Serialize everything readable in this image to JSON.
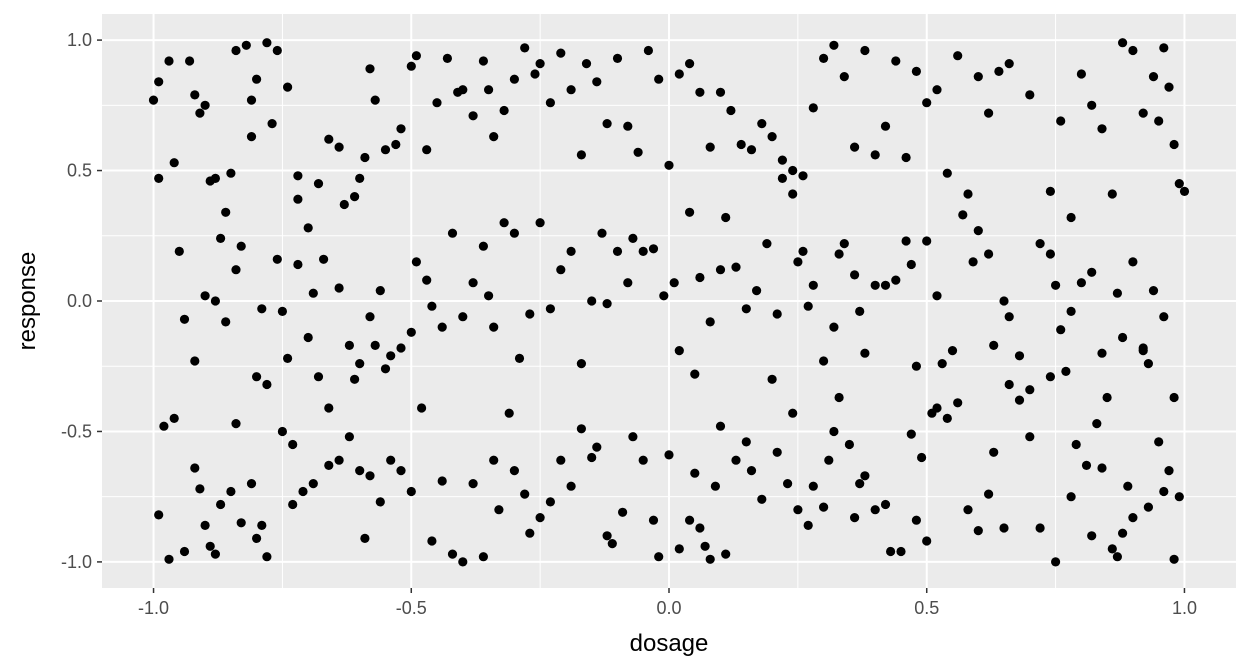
{
  "chart_data": {
    "type": "scatter",
    "xlabel": "dosage",
    "ylabel": "response",
    "xlim": [
      -1.1,
      1.1
    ],
    "ylim": [
      -1.1,
      1.1
    ],
    "x_ticks": [
      -1.0,
      -0.5,
      0.0,
      0.5,
      1.0
    ],
    "x_tick_labels": [
      "-1.0",
      "-0.5",
      "0.0",
      "0.5",
      "1.0"
    ],
    "y_ticks": [
      -1.0,
      -0.5,
      0.0,
      0.5,
      1.0
    ],
    "y_tick_labels": [
      "-1.0",
      "-0.5",
      "0.0",
      "0.5",
      "1.0"
    ],
    "grid": true,
    "panel_color": "#ebebeb",
    "grid_color": "#ffffff",
    "point_color": "#000000",
    "points": [
      [
        -1.0,
        0.77
      ],
      [
        -0.99,
        0.84
      ],
      [
        -0.99,
        0.47
      ],
      [
        -0.97,
        0.92
      ],
      [
        -0.96,
        0.53
      ],
      [
        -0.95,
        0.19
      ],
      [
        -0.93,
        0.92
      ],
      [
        -0.92,
        0.79
      ],
      [
        -0.91,
        0.72
      ],
      [
        -0.9,
        0.75
      ],
      [
        -0.89,
        0.46
      ],
      [
        -0.88,
        0.47
      ],
      [
        -0.87,
        0.24
      ],
      [
        -0.86,
        0.34
      ],
      [
        -0.85,
        0.49
      ],
      [
        -0.84,
        0.96
      ],
      [
        -0.82,
        0.98
      ],
      [
        -0.81,
        0.63
      ],
      [
        -0.81,
        0.77
      ],
      [
        -0.8,
        0.85
      ],
      [
        -0.78,
        0.99
      ],
      [
        -0.77,
        0.68
      ],
      [
        -0.76,
        0.96
      ],
      [
        -0.74,
        0.82
      ],
      [
        -0.72,
        0.48
      ],
      [
        -0.72,
        0.39
      ],
      [
        -0.7,
        0.28
      ],
      [
        -0.68,
        0.45
      ],
      [
        -0.67,
        0.16
      ],
      [
        -0.66,
        0.62
      ],
      [
        -0.64,
        0.59
      ],
      [
        -0.63,
        0.37
      ],
      [
        -0.61,
        0.4
      ],
      [
        -0.6,
        0.47
      ],
      [
        -0.59,
        0.55
      ],
      [
        -0.58,
        0.89
      ],
      [
        -0.57,
        0.77
      ],
      [
        -0.55,
        0.58
      ],
      [
        -0.53,
        0.6
      ],
      [
        -0.52,
        0.66
      ],
      [
        -0.5,
        0.9
      ],
      [
        -0.49,
        0.94
      ],
      [
        -0.47,
        0.58
      ],
      [
        -0.45,
        0.76
      ],
      [
        -0.43,
        0.93
      ],
      [
        -0.41,
        0.8
      ],
      [
        -0.4,
        0.81
      ],
      [
        -0.38,
        0.71
      ],
      [
        -0.36,
        0.92
      ],
      [
        -0.35,
        0.81
      ],
      [
        -0.34,
        0.63
      ],
      [
        -0.32,
        0.73
      ],
      [
        -0.3,
        0.85
      ],
      [
        -0.28,
        0.97
      ],
      [
        -0.26,
        0.87
      ],
      [
        -0.25,
        0.91
      ],
      [
        -0.23,
        0.76
      ],
      [
        -0.21,
        0.95
      ],
      [
        -0.19,
        0.81
      ],
      [
        -0.17,
        0.56
      ],
      [
        -0.16,
        0.91
      ],
      [
        -0.14,
        0.84
      ],
      [
        -0.12,
        0.68
      ],
      [
        -0.1,
        0.93
      ],
      [
        -0.08,
        0.67
      ],
      [
        -0.06,
        0.57
      ],
      [
        -0.04,
        0.96
      ],
      [
        -0.02,
        0.85
      ],
      [
        0.0,
        0.52
      ],
      [
        0.02,
        0.87
      ],
      [
        0.04,
        0.91
      ],
      [
        0.06,
        0.8
      ],
      [
        0.08,
        0.59
      ],
      [
        0.1,
        0.8
      ],
      [
        0.12,
        0.73
      ],
      [
        0.14,
        0.6
      ],
      [
        0.16,
        0.58
      ],
      [
        0.18,
        0.68
      ],
      [
        0.2,
        0.63
      ],
      [
        0.22,
        0.54
      ],
      [
        0.24,
        0.5
      ],
      [
        0.26,
        0.48
      ],
      [
        0.28,
        0.74
      ],
      [
        0.3,
        0.93
      ],
      [
        0.32,
        0.98
      ],
      [
        0.34,
        0.86
      ],
      [
        0.36,
        0.59
      ],
      [
        0.38,
        0.96
      ],
      [
        0.4,
        0.56
      ],
      [
        0.42,
        0.67
      ],
      [
        0.44,
        0.92
      ],
      [
        0.46,
        0.55
      ],
      [
        0.48,
        0.88
      ],
      [
        0.5,
        0.76
      ],
      [
        0.52,
        0.81
      ],
      [
        0.54,
        0.49
      ],
      [
        0.56,
        0.94
      ],
      [
        0.58,
        0.41
      ],
      [
        0.6,
        0.86
      ],
      [
        0.62,
        0.72
      ],
      [
        0.64,
        0.88
      ],
      [
        0.66,
        0.91
      ],
      [
        0.7,
        0.79
      ],
      [
        0.74,
        0.42
      ],
      [
        0.76,
        0.69
      ],
      [
        0.78,
        0.32
      ],
      [
        0.8,
        0.87
      ],
      [
        0.82,
        0.75
      ],
      [
        0.84,
        0.66
      ],
      [
        0.86,
        0.41
      ],
      [
        0.88,
        0.99
      ],
      [
        0.9,
        0.96
      ],
      [
        0.92,
        0.72
      ],
      [
        0.94,
        0.86
      ],
      [
        0.95,
        0.69
      ],
      [
        0.96,
        0.97
      ],
      [
        0.97,
        0.82
      ],
      [
        0.98,
        0.6
      ],
      [
        0.99,
        0.45
      ],
      [
        1.0,
        0.42
      ],
      [
        -0.94,
        -0.07
      ],
      [
        -0.92,
        -0.23
      ],
      [
        -0.9,
        0.02
      ],
      [
        -0.88,
        0.0
      ],
      [
        -0.86,
        -0.08
      ],
      [
        -0.84,
        0.12
      ],
      [
        -0.83,
        0.21
      ],
      [
        -0.8,
        -0.29
      ],
      [
        -0.79,
        -0.03
      ],
      [
        -0.78,
        -0.32
      ],
      [
        -0.76,
        0.16
      ],
      [
        -0.75,
        -0.04
      ],
      [
        -0.74,
        -0.22
      ],
      [
        -0.73,
        -0.55
      ],
      [
        -0.72,
        0.14
      ],
      [
        -0.7,
        -0.14
      ],
      [
        -0.69,
        0.03
      ],
      [
        -0.68,
        -0.29
      ],
      [
        -0.66,
        -0.41
      ],
      [
        -0.64,
        0.05
      ],
      [
        -0.62,
        -0.17
      ],
      [
        -0.61,
        -0.3
      ],
      [
        -0.6,
        -0.24
      ],
      [
        -0.58,
        -0.06
      ],
      [
        -0.57,
        -0.17
      ],
      [
        -0.56,
        0.04
      ],
      [
        -0.55,
        -0.26
      ],
      [
        -0.54,
        -0.21
      ],
      [
        -0.52,
        -0.18
      ],
      [
        -0.5,
        -0.12
      ],
      [
        -0.49,
        0.15
      ],
      [
        -0.47,
        0.08
      ],
      [
        -0.46,
        -0.02
      ],
      [
        -0.44,
        -0.1
      ],
      [
        -0.42,
        0.26
      ],
      [
        -0.4,
        -0.06
      ],
      [
        -0.38,
        0.07
      ],
      [
        -0.36,
        0.21
      ],
      [
        -0.35,
        0.02
      ],
      [
        -0.34,
        -0.1
      ],
      [
        -0.32,
        0.3
      ],
      [
        -0.3,
        0.26
      ],
      [
        -0.29,
        -0.22
      ],
      [
        -0.27,
        -0.05
      ],
      [
        -0.25,
        0.3
      ],
      [
        -0.23,
        -0.03
      ],
      [
        -0.21,
        0.12
      ],
      [
        -0.19,
        0.19
      ],
      [
        -0.17,
        -0.24
      ],
      [
        -0.15,
        0.0
      ],
      [
        -0.13,
        0.26
      ],
      [
        -0.12,
        -0.01
      ],
      [
        -0.1,
        0.19
      ],
      [
        -0.08,
        0.07
      ],
      [
        -0.07,
        0.24
      ],
      [
        -0.05,
        0.19
      ],
      [
        -0.03,
        0.2
      ],
      [
        -0.01,
        0.02
      ],
      [
        0.01,
        0.07
      ],
      [
        0.02,
        -0.19
      ],
      [
        0.04,
        0.34
      ],
      [
        0.05,
        -0.28
      ],
      [
        0.06,
        0.09
      ],
      [
        0.08,
        -0.08
      ],
      [
        0.1,
        0.12
      ],
      [
        0.11,
        0.32
      ],
      [
        0.13,
        0.13
      ],
      [
        0.15,
        -0.03
      ],
      [
        0.17,
        0.04
      ],
      [
        0.19,
        0.22
      ],
      [
        0.21,
        -0.05
      ],
      [
        0.22,
        0.47
      ],
      [
        0.24,
        0.41
      ],
      [
        0.25,
        0.15
      ],
      [
        0.26,
        0.19
      ],
      [
        0.27,
        -0.02
      ],
      [
        0.28,
        0.06
      ],
      [
        0.3,
        -0.23
      ],
      [
        0.32,
        -0.1
      ],
      [
        0.33,
        0.18
      ],
      [
        0.34,
        0.22
      ],
      [
        0.36,
        0.1
      ],
      [
        0.37,
        -0.04
      ],
      [
        0.38,
        -0.2
      ],
      [
        0.4,
        0.06
      ],
      [
        0.42,
        0.06
      ],
      [
        0.44,
        0.08
      ],
      [
        0.46,
        0.23
      ],
      [
        0.47,
        0.14
      ],
      [
        0.48,
        -0.25
      ],
      [
        0.5,
        0.23
      ],
      [
        0.52,
        0.02
      ],
      [
        0.53,
        -0.24
      ],
      [
        0.55,
        -0.19
      ],
      [
        0.57,
        0.33
      ],
      [
        0.59,
        0.15
      ],
      [
        0.6,
        0.27
      ],
      [
        0.62,
        0.18
      ],
      [
        0.63,
        -0.17
      ],
      [
        0.65,
        0.0
      ],
      [
        0.66,
        -0.06
      ],
      [
        0.68,
        -0.21
      ],
      [
        0.7,
        -0.34
      ],
      [
        0.72,
        0.22
      ],
      [
        0.74,
        0.18
      ],
      [
        0.75,
        0.06
      ],
      [
        0.76,
        -0.11
      ],
      [
        0.78,
        -0.04
      ],
      [
        0.8,
        0.07
      ],
      [
        0.82,
        0.11
      ],
      [
        0.84,
        -0.2
      ],
      [
        0.85,
        -0.37
      ],
      [
        0.87,
        0.03
      ],
      [
        0.88,
        -0.14
      ],
      [
        0.9,
        0.15
      ],
      [
        0.92,
        -0.19
      ],
      [
        0.93,
        -0.24
      ],
      [
        0.94,
        0.04
      ],
      [
        0.96,
        -0.06
      ],
      [
        0.98,
        -0.37
      ],
      [
        -0.99,
        -0.82
      ],
      [
        -0.98,
        -0.48
      ],
      [
        -0.97,
        -0.99
      ],
      [
        -0.96,
        -0.45
      ],
      [
        -0.94,
        -0.96
      ],
      [
        -0.92,
        -0.64
      ],
      [
        -0.91,
        -0.72
      ],
      [
        -0.9,
        -0.86
      ],
      [
        -0.89,
        -0.94
      ],
      [
        -0.88,
        -0.97
      ],
      [
        -0.87,
        -0.78
      ],
      [
        -0.85,
        -0.73
      ],
      [
        -0.84,
        -0.47
      ],
      [
        -0.83,
        -0.85
      ],
      [
        -0.81,
        -0.7
      ],
      [
        -0.8,
        -0.91
      ],
      [
        -0.79,
        -0.86
      ],
      [
        -0.78,
        -0.98
      ],
      [
        -0.75,
        -0.5
      ],
      [
        -0.73,
        -0.78
      ],
      [
        -0.71,
        -0.73
      ],
      [
        -0.69,
        -0.7
      ],
      [
        -0.66,
        -0.63
      ],
      [
        -0.64,
        -0.61
      ],
      [
        -0.62,
        -0.52
      ],
      [
        -0.6,
        -0.65
      ],
      [
        -0.59,
        -0.91
      ],
      [
        -0.58,
        -0.67
      ],
      [
        -0.56,
        -0.77
      ],
      [
        -0.54,
        -0.61
      ],
      [
        -0.52,
        -0.65
      ],
      [
        -0.5,
        -0.73
      ],
      [
        -0.48,
        -0.41
      ],
      [
        -0.46,
        -0.92
      ],
      [
        -0.44,
        -0.69
      ],
      [
        -0.42,
        -0.97
      ],
      [
        -0.4,
        -1.0
      ],
      [
        -0.38,
        -0.7
      ],
      [
        -0.36,
        -0.98
      ],
      [
        -0.34,
        -0.61
      ],
      [
        -0.33,
        -0.8
      ],
      [
        -0.31,
        -0.43
      ],
      [
        -0.3,
        -0.65
      ],
      [
        -0.28,
        -0.74
      ],
      [
        -0.27,
        -0.89
      ],
      [
        -0.25,
        -0.83
      ],
      [
        -0.23,
        -0.77
      ],
      [
        -0.21,
        -0.61
      ],
      [
        -0.19,
        -0.71
      ],
      [
        -0.17,
        -0.49
      ],
      [
        -0.15,
        -0.6
      ],
      [
        -0.14,
        -0.56
      ],
      [
        -0.12,
        -0.9
      ],
      [
        -0.11,
        -0.93
      ],
      [
        -0.09,
        -0.81
      ],
      [
        -0.07,
        -0.52
      ],
      [
        -0.05,
        -0.61
      ],
      [
        -0.03,
        -0.84
      ],
      [
        -0.02,
        -0.98
      ],
      [
        0.0,
        -0.59
      ],
      [
        0.02,
        -0.95
      ],
      [
        0.04,
        -0.84
      ],
      [
        0.05,
        -0.66
      ],
      [
        0.06,
        -0.87
      ],
      [
        0.07,
        -0.94
      ],
      [
        0.08,
        -0.99
      ],
      [
        0.09,
        -0.71
      ],
      [
        0.1,
        -0.48
      ],
      [
        0.11,
        -0.97
      ],
      [
        0.13,
        -0.61
      ],
      [
        0.15,
        -0.54
      ],
      [
        0.16,
        -0.65
      ],
      [
        0.18,
        -0.76
      ],
      [
        0.2,
        -0.3
      ],
      [
        0.21,
        -0.58
      ],
      [
        0.23,
        -0.7
      ],
      [
        0.24,
        -0.43
      ],
      [
        0.25,
        -0.8
      ],
      [
        0.27,
        -0.86
      ],
      [
        0.28,
        -0.71
      ],
      [
        0.3,
        -0.79
      ],
      [
        0.31,
        -0.61
      ],
      [
        0.32,
        -0.5
      ],
      [
        0.33,
        -0.37
      ],
      [
        0.35,
        -0.55
      ],
      [
        0.36,
        -0.83
      ],
      [
        0.37,
        -0.7
      ],
      [
        0.38,
        -0.67
      ],
      [
        0.4,
        -0.8
      ],
      [
        0.42,
        -0.78
      ],
      [
        0.43,
        -0.96
      ],
      [
        0.45,
        -0.96
      ],
      [
        0.47,
        -0.51
      ],
      [
        0.48,
        -0.84
      ],
      [
        0.49,
        -0.6
      ],
      [
        0.5,
        -0.92
      ],
      [
        0.51,
        -0.43
      ],
      [
        0.52,
        -0.41
      ],
      [
        0.54,
        -0.45
      ],
      [
        0.56,
        -0.39
      ],
      [
        0.58,
        -0.8
      ],
      [
        0.6,
        -0.88
      ],
      [
        0.62,
        -0.74
      ],
      [
        0.63,
        -0.58
      ],
      [
        0.65,
        -0.87
      ],
      [
        0.66,
        -0.32
      ],
      [
        0.68,
        -0.38
      ],
      [
        0.7,
        -0.52
      ],
      [
        0.72,
        -0.87
      ],
      [
        0.74,
        -0.29
      ],
      [
        0.75,
        -1.0
      ],
      [
        0.77,
        -0.27
      ],
      [
        0.78,
        -0.75
      ],
      [
        0.79,
        -0.55
      ],
      [
        0.81,
        -0.63
      ],
      [
        0.82,
        -0.9
      ],
      [
        0.83,
        -0.47
      ],
      [
        0.84,
        -0.64
      ],
      [
        0.86,
        -0.95
      ],
      [
        0.87,
        -0.98
      ],
      [
        0.88,
        -0.89
      ],
      [
        0.89,
        -0.71
      ],
      [
        0.9,
        -0.83
      ],
      [
        0.92,
        -0.18
      ],
      [
        0.93,
        -0.79
      ],
      [
        0.95,
        -0.54
      ],
      [
        0.96,
        -0.73
      ],
      [
        0.97,
        -0.65
      ],
      [
        0.98,
        -0.99
      ],
      [
        0.99,
        -0.75
      ]
    ]
  }
}
